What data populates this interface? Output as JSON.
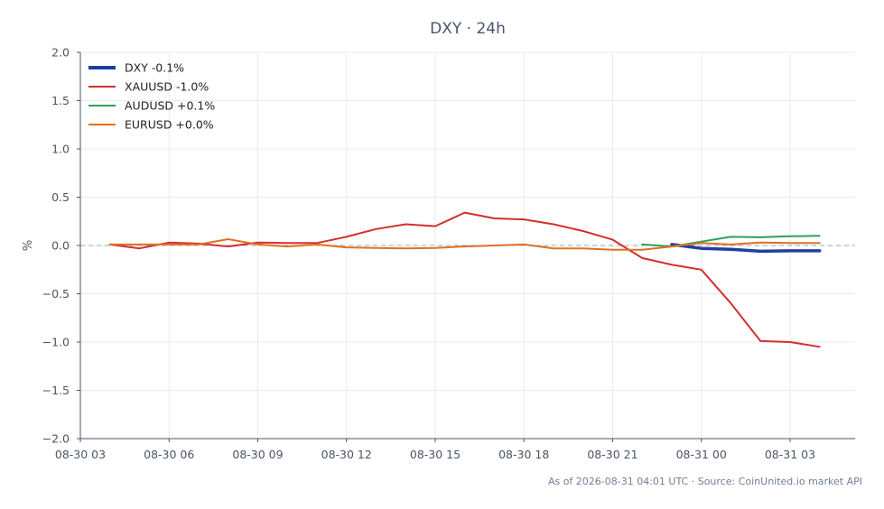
{
  "chart_data": {
    "type": "line",
    "title": "DXY · 24h",
    "ylabel": "%",
    "xlabel": "",
    "ylim": [
      -2.0,
      2.0
    ],
    "yticks": [
      "2.0",
      "1.5",
      "1.0",
      "0.5",
      "0.0",
      "−0.5",
      "−1.0",
      "−1.5",
      "−2.0"
    ],
    "ytick_values": [
      2.0,
      1.5,
      1.0,
      0.5,
      0.0,
      -0.5,
      -1.0,
      -1.5,
      -2.0
    ],
    "xlim": [
      0,
      26.2
    ],
    "xticks": [
      "08-30 03",
      "08-30 06",
      "08-30 09",
      "08-30 12",
      "08-30 15",
      "08-30 18",
      "08-30 21",
      "08-31 00",
      "08-31 03"
    ],
    "xtick_values": [
      0,
      3,
      6,
      9,
      12,
      15,
      18,
      21,
      24
    ],
    "grid": true,
    "zero_line": true,
    "legend_position": "top-left",
    "series": [
      {
        "name": "DXY -0.1%",
        "color": "#1f3f9f",
        "thick": true,
        "x": [
          20.0,
          21.0,
          22.0,
          23.0,
          24.0,
          25.0
        ],
        "y": [
          0.01,
          -0.03,
          -0.04,
          -0.06,
          -0.055,
          -0.055
        ]
      },
      {
        "name": "XAUUSD -1.0%",
        "color": "#d23030",
        "thick": false,
        "x": [
          1,
          2,
          3,
          4,
          5,
          6,
          7,
          8,
          9,
          10,
          11,
          12,
          13,
          14,
          15,
          16,
          17,
          18,
          19,
          20,
          21,
          22,
          23,
          24,
          25
        ],
        "y": [
          0.01,
          -0.03,
          0.03,
          0.02,
          -0.01,
          0.03,
          0.025,
          0.025,
          0.09,
          0.17,
          0.22,
          0.2,
          0.34,
          0.28,
          0.27,
          0.22,
          0.15,
          0.06,
          -0.13,
          -0.2,
          -0.25,
          -0.6,
          -0.99,
          -1.0,
          -1.05
        ]
      },
      {
        "name": "AUDUSD +0.1%",
        "color": "#2ca05a",
        "thick": false,
        "x": [
          19.0,
          20.0,
          21.0,
          22.0,
          23.0,
          24.0,
          25.0
        ],
        "y": [
          0.01,
          -0.01,
          0.04,
          0.09,
          0.085,
          0.095,
          0.1
        ]
      },
      {
        "name": "EURUSD +0.0%",
        "color": "#e07020",
        "thick": false,
        "x": [
          1,
          2,
          3,
          4,
          5,
          6,
          7,
          8,
          9,
          10,
          11,
          12,
          13,
          14,
          15,
          16,
          17,
          18,
          19,
          20,
          21,
          22,
          23,
          24,
          25
        ],
        "y": [
          0.01,
          0.01,
          0.01,
          0.01,
          0.065,
          0.01,
          -0.01,
          0.01,
          -0.02,
          -0.025,
          -0.03,
          -0.025,
          -0.01,
          0.0,
          0.01,
          -0.03,
          -0.03,
          -0.045,
          -0.045,
          -0.01,
          0.025,
          0.01,
          0.03,
          0.025,
          0.025
        ]
      }
    ]
  },
  "footer": {
    "source": "As of 2026-08-31 04:01 UTC · Source: CoinUnited.io market API"
  }
}
